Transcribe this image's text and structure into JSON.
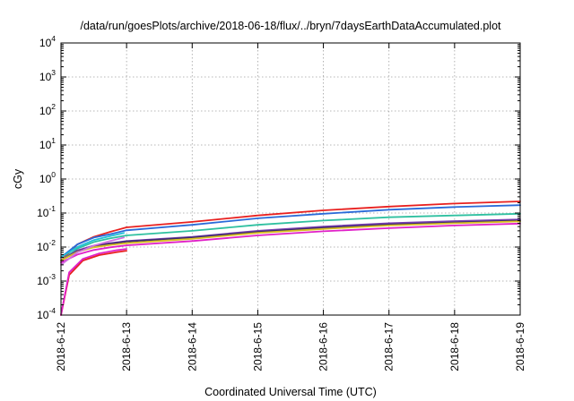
{
  "chart_data": {
    "type": "line",
    "title": "/data/run/goesPlots/archive/2018-06-18/flux/../bryn/7daysEarthDataAccumulated.plot",
    "xlabel": "Coordinated Universal Time (UTC)",
    "ylabel": "cGy",
    "y_scale": "log",
    "ylim": [
      0.0001,
      10000
    ],
    "y_ticks": [
      {
        "value": 0.0001,
        "base": "10",
        "exp": "-4"
      },
      {
        "value": 0.001,
        "base": "10",
        "exp": "-3"
      },
      {
        "value": 0.01,
        "base": "10",
        "exp": "-2"
      },
      {
        "value": 0.1,
        "base": "10",
        "exp": "-1"
      },
      {
        "value": 1,
        "base": "10",
        "exp": "0"
      },
      {
        "value": 10,
        "base": "10",
        "exp": "1"
      },
      {
        "value": 100,
        "base": "10",
        "exp": "2"
      },
      {
        "value": 1000,
        "base": "10",
        "exp": "3"
      },
      {
        "value": 10000,
        "base": "10",
        "exp": "4"
      }
    ],
    "x_range": [
      "2018-6-12",
      "2018-6-19"
    ],
    "x_ticks": [
      "2018-6-12",
      "2018-6-13",
      "2018-6-14",
      "2018-6-15",
      "2018-6-16",
      "2018-6-17",
      "2018-6-18",
      "2018-6-19"
    ],
    "grid": true,
    "series": [
      {
        "color": "#e8201f",
        "points": [
          [
            "2018-6-12 00:00",
            0.004
          ],
          [
            "2018-6-12 06:00",
            0.012
          ],
          [
            "2018-6-12 12:00",
            0.02
          ],
          [
            "2018-6-12 18:00",
            0.028
          ],
          [
            "2018-6-13",
            0.038
          ],
          [
            "2018-6-14",
            0.055
          ],
          [
            "2018-6-15",
            0.085
          ],
          [
            "2018-6-16",
            0.12
          ],
          [
            "2018-6-17",
            0.155
          ],
          [
            "2018-6-18",
            0.19
          ],
          [
            "2018-6-19",
            0.22
          ]
        ]
      },
      {
        "color": "#2a6ad8",
        "points": [
          [
            "2018-6-12 00:00",
            0.005
          ],
          [
            "2018-6-12 06:00",
            0.012
          ],
          [
            "2018-6-12 12:00",
            0.019
          ],
          [
            "2018-6-12 18:00",
            0.024
          ],
          [
            "2018-6-13",
            0.031
          ],
          [
            "2018-6-14",
            0.045
          ],
          [
            "2018-6-15",
            0.07
          ],
          [
            "2018-6-16",
            0.095
          ],
          [
            "2018-6-17",
            0.125
          ],
          [
            "2018-6-18",
            0.15
          ],
          [
            "2018-6-19",
            0.17
          ]
        ]
      },
      {
        "color": "#2fc0a0",
        "points": [
          [
            "2018-6-12 00:00",
            0.004
          ],
          [
            "2018-6-12 06:00",
            0.009
          ],
          [
            "2018-6-12 12:00",
            0.014
          ],
          [
            "2018-6-12 18:00",
            0.018
          ],
          [
            "2018-6-13",
            0.022
          ],
          [
            "2018-6-14",
            0.03
          ],
          [
            "2018-6-15",
            0.045
          ],
          [
            "2018-6-16",
            0.06
          ],
          [
            "2018-6-17",
            0.075
          ],
          [
            "2018-6-18",
            0.085
          ],
          [
            "2018-6-19",
            0.095
          ]
        ]
      },
      {
        "color": "#7a3fb0",
        "points": [
          [
            "2018-6-12 00:00",
            0.004
          ],
          [
            "2018-6-12 06:00",
            0.008
          ],
          [
            "2018-6-12 12:00",
            0.011
          ],
          [
            "2018-6-12 18:00",
            0.013
          ],
          [
            "2018-6-13",
            0.015
          ],
          [
            "2018-6-14",
            0.02
          ],
          [
            "2018-6-15",
            0.03
          ],
          [
            "2018-6-16",
            0.04
          ],
          [
            "2018-6-17",
            0.05
          ],
          [
            "2018-6-18",
            0.058
          ],
          [
            "2018-6-19",
            0.065
          ]
        ]
      },
      {
        "color": "#3b2a6e",
        "points": [
          [
            "2018-6-12 00:00",
            0.004
          ],
          [
            "2018-6-12 06:00",
            0.0075
          ],
          [
            "2018-6-12 12:00",
            0.0105
          ],
          [
            "2018-6-12 18:00",
            0.0125
          ],
          [
            "2018-6-13",
            0.0145
          ],
          [
            "2018-6-14",
            0.019
          ],
          [
            "2018-6-15",
            0.028
          ],
          [
            "2018-6-16",
            0.037
          ],
          [
            "2018-6-17",
            0.046
          ],
          [
            "2018-6-18",
            0.053
          ],
          [
            "2018-6-19",
            0.06
          ]
        ]
      },
      {
        "color": "#d8c020",
        "points": [
          [
            "2018-6-12 00:00",
            0.004
          ],
          [
            "2018-6-12 06:00",
            0.0072
          ],
          [
            "2018-6-12 12:00",
            0.0098
          ],
          [
            "2018-6-12 18:00",
            0.0115
          ],
          [
            "2018-6-13",
            0.013
          ],
          [
            "2018-6-14",
            0.0175
          ],
          [
            "2018-6-15",
            0.026
          ],
          [
            "2018-6-16",
            0.034
          ],
          [
            "2018-6-17",
            0.043
          ],
          [
            "2018-6-18",
            0.05
          ],
          [
            "2018-6-19",
            0.057
          ]
        ]
      },
      {
        "color": "#e020c8",
        "points": [
          [
            "2018-6-12 00:00",
            0.0035
          ],
          [
            "2018-6-12 06:00",
            0.006
          ],
          [
            "2018-6-12 12:00",
            0.0082
          ],
          [
            "2018-6-12 18:00",
            0.0098
          ],
          [
            "2018-6-13",
            0.0112
          ],
          [
            "2018-6-14",
            0.015
          ],
          [
            "2018-6-15",
            0.022
          ],
          [
            "2018-6-16",
            0.029
          ],
          [
            "2018-6-17",
            0.036
          ],
          [
            "2018-6-18",
            0.043
          ],
          [
            "2018-6-19",
            0.049
          ]
        ]
      },
      {
        "color": "#20c0d8",
        "points": [
          [
            "2018-6-12 00:00",
            0.005
          ],
          [
            "2018-6-12 06:00",
            0.01
          ],
          [
            "2018-6-12 12:00",
            0.016
          ],
          [
            "2018-6-12 18:00",
            0.021
          ],
          [
            "2018-6-12 23:00",
            0.026
          ]
        ]
      },
      {
        "color": "#e8201f",
        "points": [
          [
            "2018-6-12 00:00",
            0.0001
          ],
          [
            "2018-6-12 03:00",
            0.0015
          ],
          [
            "2018-6-12 08:00",
            0.004
          ],
          [
            "2018-6-12 14:00",
            0.0058
          ],
          [
            "2018-6-12 20:00",
            0.007
          ],
          [
            "2018-6-13",
            0.0078
          ]
        ]
      },
      {
        "color": "#e020c8",
        "points": [
          [
            "2018-6-12 00:00",
            0.0001
          ],
          [
            "2018-6-12 03:00",
            0.0018
          ],
          [
            "2018-6-12 08:00",
            0.0045
          ],
          [
            "2018-6-12 14:00",
            0.0065
          ],
          [
            "2018-6-12 20:00",
            0.008
          ],
          [
            "2018-6-13",
            0.0088
          ]
        ]
      },
      {
        "color": "#d070e0",
        "points": [
          [
            "2018-6-12 00:00",
            0.003
          ],
          [
            "2018-6-12 06:00",
            0.007
          ],
          [
            "2018-6-12 12:00",
            0.011
          ],
          [
            "2018-6-12 18:00",
            0.015
          ],
          [
            "2018-6-12 23:00",
            0.019
          ]
        ]
      }
    ]
  }
}
